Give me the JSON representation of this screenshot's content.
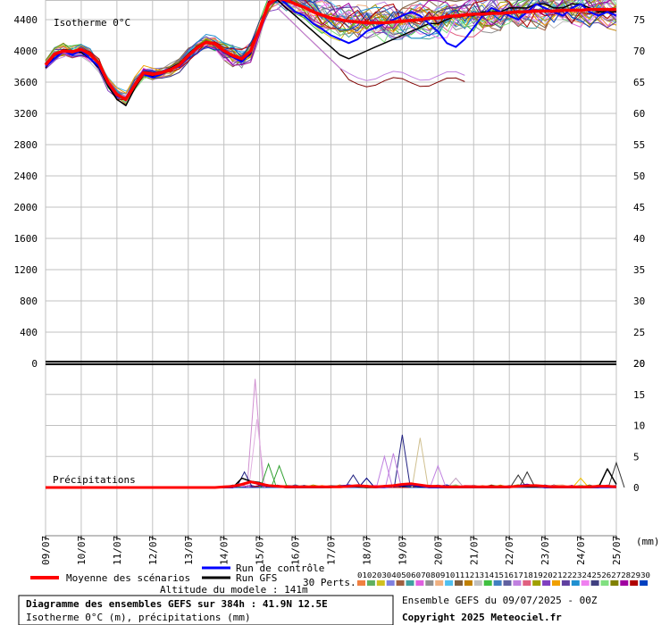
{
  "chart_data": {
    "type": "line",
    "panels": [
      {
        "name": "Isotherme 0°C",
        "y_left_ticks": [
          0,
          400,
          800,
          1200,
          1600,
          2000,
          2400,
          2800,
          3200,
          3600,
          4000,
          4400
        ],
        "y_right_ticks": [
          20,
          25,
          30,
          35,
          40,
          45,
          50,
          55,
          60,
          65,
          70,
          75
        ],
        "ylim": [
          0,
          4600
        ]
      },
      {
        "name": "Précipitations",
        "y_right_ticks": [
          0,
          5,
          10,
          15,
          20
        ],
        "ylim": [
          -8,
          20
        ]
      }
    ],
    "x_dates": [
      "09/07",
      "10/07",
      "11/07",
      "12/07",
      "13/07",
      "14/07",
      "15/07",
      "16/07",
      "17/07",
      "18/07",
      "19/07",
      "20/07",
      "21/07",
      "22/07",
      "23/07",
      "24/07",
      "25/07"
    ],
    "x_unit": "(mm)",
    "iso_mean": [
      3820,
      3960,
      4000,
      3990,
      4020,
      3960,
      3840,
      3600,
      3440,
      3380,
      3560,
      3720,
      3700,
      3720,
      3760,
      3820,
      3940,
      4040,
      4110,
      4090,
      4000,
      3940,
      3900,
      4000,
      4280,
      4600,
      4680,
      4650,
      4600,
      4560,
      4500,
      4460,
      4420,
      4400,
      4380,
      4370,
      4360,
      4360,
      4360,
      4370,
      4380,
      4390,
      4400,
      4420,
      4420,
      4440,
      4450,
      4460,
      4470,
      4470,
      4480,
      4480,
      4490,
      4500,
      4500,
      4510,
      4510,
      4510,
      4520,
      4520,
      4520,
      4530,
      4530,
      4530,
      4530
    ],
    "iso_control": [
      3800,
      3900,
      4000,
      3950,
      4010,
      3900,
      3800,
      3580,
      3420,
      3380,
      3580,
      3700,
      3660,
      3700,
      3760,
      3800,
      3920,
      4040,
      4110,
      4080,
      3980,
      3920,
      3860,
      3980,
      4280,
      4600,
      4700,
      4600,
      4500,
      4450,
      4350,
      4280,
      4200,
      4150,
      4100,
      4150,
      4250,
      4300,
      4350,
      4400,
      4450,
      4500,
      4450,
      4350,
      4250,
      4100,
      4050,
      4150,
      4300,
      4450,
      4550,
      4500,
      4450,
      4400,
      4500,
      4600,
      4550,
      4500,
      4450,
      4550,
      4600,
      4500,
      4450,
      4500,
      4450
    ],
    "iso_gfs": [
      3780,
      3940,
      4020,
      4000,
      3980,
      3900,
      3780,
      3550,
      3380,
      3300,
      3520,
      3700,
      3680,
      3720,
      3780,
      3840,
      3960,
      4060,
      4120,
      4080,
      3980,
      3920,
      3880,
      3960,
      4300,
      4620,
      4650,
      4550,
      4450,
      4350,
      4250,
      4150,
      4050,
      3950,
      3900,
      3950,
      4000,
      4050,
      4100,
      4150,
      4200,
      4250,
      4300,
      4350,
      4350,
      4400,
      4450,
      4450,
      4450,
      4500,
      4500,
      4500,
      4550,
      4550,
      4550,
      4600,
      4600,
      4550,
      4550,
      4600,
      4600,
      4550,
      4500,
      4500,
      4500
    ],
    "precip_mean": [
      0,
      0,
      0,
      0,
      0,
      0,
      0,
      0,
      0,
      0,
      0,
      0,
      0,
      0,
      0,
      0,
      0,
      0,
      0,
      0,
      0.1,
      0.2,
      0.5,
      0.9,
      0.6,
      0.3,
      0.2,
      0.1,
      0.1,
      0.1,
      0.1,
      0.1,
      0.1,
      0.1,
      0.2,
      0.3,
      0.2,
      0.1,
      0.2,
      0.3,
      0.5,
      0.6,
      0.4,
      0.2,
      0.2,
      0.1,
      0.1,
      0.1,
      0.1,
      0.1,
      0.1,
      0.1,
      0.1,
      0.2,
      0.3,
      0.3,
      0.2,
      0.1,
      0.1,
      0.1,
      0.1,
      0.1,
      0.2,
      0.2,
      0.1
    ],
    "precip_control": [
      0,
      0,
      0,
      0,
      0,
      0,
      0,
      0,
      0,
      0,
      0,
      0,
      0,
      0,
      0,
      0,
      0,
      0,
      0,
      0,
      0,
      0,
      0.5,
      1.0,
      0.4,
      0.2,
      0.1,
      0,
      0,
      0,
      0,
      0,
      0.1,
      0.2,
      0.4,
      0.2,
      0.1,
      0,
      0,
      0.2,
      0.3,
      0.4,
      0.2,
      0,
      0,
      0,
      0,
      0,
      0,
      0,
      0,
      0,
      0,
      0.3,
      0.5,
      0.2,
      0,
      0,
      0,
      0,
      0,
      0,
      0,
      0,
      0
    ],
    "precip_gfs": [
      0,
      0,
      0,
      0,
      0,
      0,
      0,
      0,
      0,
      0,
      0,
      0,
      0,
      0,
      0,
      0,
      0,
      0,
      0,
      0,
      0,
      0,
      1.5,
      1.0,
      0.8,
      0.3,
      0.1,
      0,
      0,
      0,
      0,
      0,
      0,
      0.2,
      0.3,
      0.1,
      0,
      0,
      0.1,
      0.3,
      0.2,
      0.4,
      0.1,
      0,
      0,
      0,
      0,
      0,
      0,
      0,
      0,
      0,
      0,
      0.2,
      0.1,
      0.1,
      0,
      0,
      0,
      0,
      0,
      0,
      0,
      3.0,
      0.5
    ],
    "precip_peaks": [
      {
        "x": 23.5,
        "v": 17.5,
        "color": "#d090d0"
      },
      {
        "x": 23.7,
        "v": 11.0,
        "color": "#e0b0e0"
      },
      {
        "x": 22.3,
        "v": 2.5,
        "color": "#202080"
      },
      {
        "x": 25.0,
        "v": 3.8,
        "color": "#30a030"
      },
      {
        "x": 26.2,
        "v": 3.5,
        "color": "#30a030"
      },
      {
        "x": 34.5,
        "v": 2.0,
        "color": "#202080"
      },
      {
        "x": 36.0,
        "v": 1.5,
        "color": "#000080"
      },
      {
        "x": 40.0,
        "v": 8.5,
        "color": "#202080"
      },
      {
        "x": 39.0,
        "v": 5.5,
        "color": "#c080e0"
      },
      {
        "x": 38.0,
        "v": 5.0,
        "color": "#c080e0"
      },
      {
        "x": 42.0,
        "v": 8.0,
        "color": "#d0c090"
      },
      {
        "x": 44.0,
        "v": 3.5,
        "color": "#c080e0"
      },
      {
        "x": 46.0,
        "v": 1.5,
        "color": "#c0a0c0"
      },
      {
        "x": 53.0,
        "v": 2.0,
        "color": "#303030"
      },
      {
        "x": 54.0,
        "v": 2.5,
        "color": "#303030"
      },
      {
        "x": 60.0,
        "v": 1.5,
        "color": "#f0c000"
      },
      {
        "x": 64.0,
        "v": 4.0,
        "color": "#303030"
      }
    ],
    "member_colors": [
      "#f08040",
      "#60b060",
      "#d0c020",
      "#8080e0",
      "#a06040",
      "#40a0a0",
      "#e060e0",
      "#909090",
      "#f0b080",
      "#50c0f0",
      "#806040",
      "#c08000",
      "#c0c0c0",
      "#40c040",
      "#4080c0",
      "#6060a0",
      "#c080e0",
      "#e06080",
      "#a0a000",
      "#8040c0",
      "#f0a000",
      "#6040a0",
      "#2090d0",
      "#f080f0",
      "#404080",
      "#80e080",
      "#808000",
      "#a000a0",
      "#b00000",
      "#0040c0"
    ]
  },
  "header": {
    "iso_label": "Isotherme 0°C",
    "precip_label": "Précipitations"
  },
  "legend": {
    "mean_label": "Moyenne des scénarios",
    "control_label": "Run de contrôle",
    "gfs_label": "Run GFS",
    "altitude_label": "Altitude du modele : 141m",
    "perts_label": "30 Perts.",
    "perts_numbers": "010203040506070809101112131415161718192021222324252627282930"
  },
  "footer": {
    "title": "Diagramme des ensembles GEFS sur 384h : 41.9N 12.5E",
    "subtitle": "Isotherme 0°C (m), précipitations (mm)",
    "run": "Ensemble GEFS du 09/07/2025 - 00Z",
    "copyright": "Copyright 2025 Meteociel.fr"
  },
  "colors": {
    "mean": "#ff0000",
    "control": "#0000ff",
    "gfs": "#000000",
    "grid": "#c0c0c0"
  }
}
